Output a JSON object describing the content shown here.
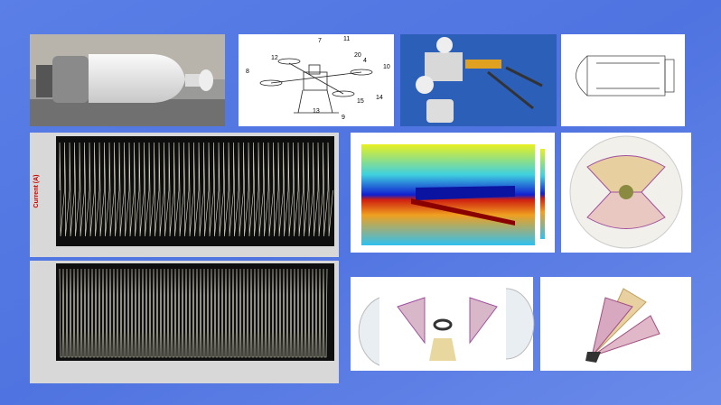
{
  "drone_drawing": {
    "labels": [
      "7",
      "11",
      "12",
      "8",
      "20",
      "4",
      "10",
      "14",
      "15",
      "13",
      "9"
    ]
  },
  "plot1": {
    "ylabel": "Current (A)"
  }
}
